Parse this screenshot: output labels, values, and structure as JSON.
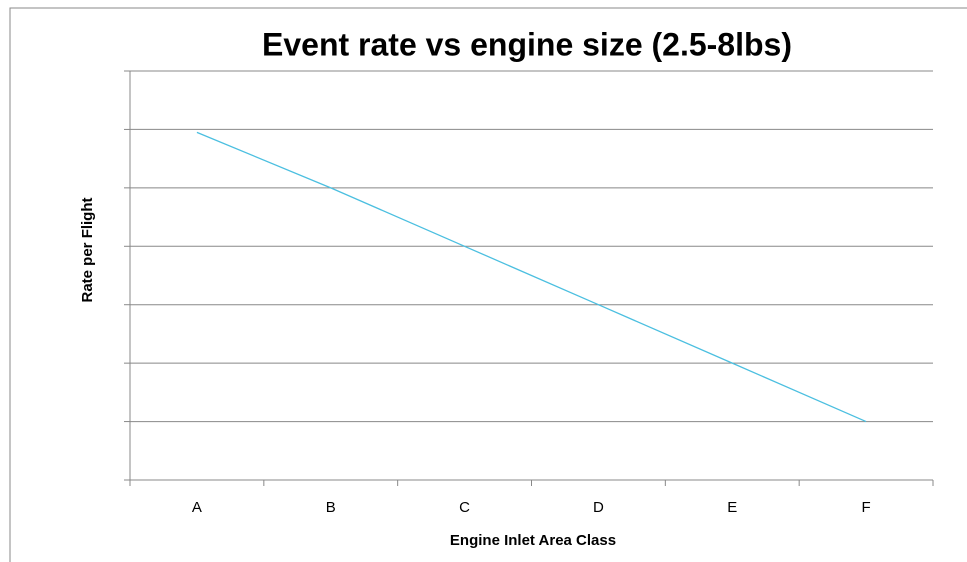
{
  "chart_data": {
    "type": "line",
    "title": "Event rate vs engine size  (2.5-8lbs)",
    "x_label": "Engine Inlet Area Class",
    "y_label": "Rate per Flight",
    "categories": [
      "A",
      "B",
      "C",
      "D",
      "E",
      "F"
    ],
    "series": [
      {
        "name": "Rate per Flight",
        "color": "#4bbfe0",
        "values": [
          5.95,
          5,
          4,
          3,
          2,
          1
        ]
      }
    ],
    "ylim": [
      0,
      7
    ],
    "yticks": [
      0,
      1,
      2,
      3,
      4,
      5,
      6,
      7
    ],
    "grid": true
  }
}
